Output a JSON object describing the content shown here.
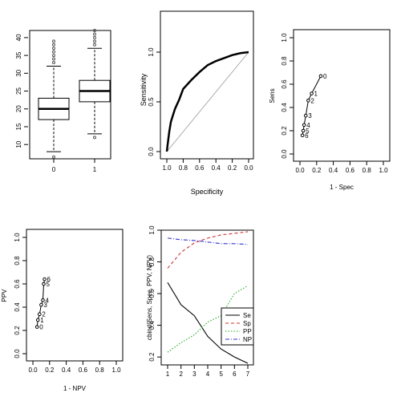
{
  "chart_data": [
    {
      "type": "boxplot",
      "categories": [
        "0",
        "1"
      ],
      "boxes": [
        {
          "name": "0",
          "whisker_low": 8,
          "q1": 17,
          "median": 20,
          "q3": 23,
          "whisker_high": 32,
          "outliers_high": [
            33,
            34,
            35,
            36,
            37,
            38,
            39
          ],
          "outliers_low": [
            6.5
          ]
        },
        {
          "name": "1",
          "whisker_low": 13,
          "q1": 22,
          "median": 25,
          "q3": 28,
          "whisker_high": 37,
          "outliers_high": [
            38,
            39,
            40,
            41,
            42
          ],
          "outliers_low": [
            12
          ]
        }
      ],
      "ylim": [
        6,
        42
      ],
      "yticks": [
        10,
        15,
        20,
        25,
        30,
        35,
        40
      ],
      "xlabel": "",
      "ylabel": ""
    },
    {
      "type": "line",
      "title": "",
      "xlabel": "Specificity",
      "ylabel": "Sensitivity",
      "xlim": [
        1.0,
        0.0
      ],
      "ylim": [
        0.0,
        1.0
      ],
      "xticks": [
        "1.0",
        "0.8",
        "0.6",
        "0.4",
        "0.2",
        "0.0"
      ],
      "yticks": [
        "0.0",
        "0.5",
        "1.0"
      ],
      "series": [
        {
          "x": [
            1.0,
            0.99,
            0.97,
            0.95,
            0.9,
            0.85,
            0.8,
            0.7,
            0.6,
            0.5,
            0.4,
            0.3,
            0.2,
            0.1,
            0.0
          ],
          "y": [
            0.0,
            0.07,
            0.2,
            0.3,
            0.43,
            0.52,
            0.63,
            0.72,
            0.8,
            0.87,
            0.91,
            0.94,
            0.97,
            0.99,
            1.0
          ]
        }
      ],
      "reference_line": [
        [
          1.0,
          0.0
        ],
        [
          0.0,
          1.0
        ]
      ]
    },
    {
      "type": "scatter",
      "xlabel": "1 - Spec",
      "ylabel": "Sens",
      "xlim": [
        0,
        1
      ],
      "ylim": [
        0,
        1
      ],
      "xticks": [
        "0.0",
        "0.2",
        "0.4",
        "0.6",
        "0.8",
        "1.0"
      ],
      "yticks": [
        "0.0",
        "0.2",
        "0.4",
        "0.6",
        "0.8",
        "1.0"
      ],
      "points": [
        {
          "label": "0",
          "x": 0.25,
          "y": 0.67
        },
        {
          "label": "1",
          "x": 0.14,
          "y": 0.52
        },
        {
          "label": "2",
          "x": 0.1,
          "y": 0.46
        },
        {
          "label": "3",
          "x": 0.07,
          "y": 0.33
        },
        {
          "label": "4",
          "x": 0.05,
          "y": 0.25
        },
        {
          "label": "5",
          "x": 0.04,
          "y": 0.2
        },
        {
          "label": "6",
          "x": 0.03,
          "y": 0.16
        }
      ]
    },
    {
      "type": "scatter",
      "xlabel": "1 - NPV",
      "ylabel": "PPV",
      "xlim": [
        0,
        1
      ],
      "ylim": [
        0,
        1
      ],
      "xticks": [
        "0.0",
        "0.2",
        "0.4",
        "0.6",
        "0.8",
        "1.0"
      ],
      "yticks": [
        "0.0",
        "0.2",
        "0.4",
        "0.6",
        "0.8",
        "1.0"
      ],
      "points": [
        {
          "label": "0",
          "x": 0.05,
          "y": 0.23
        },
        {
          "label": "1",
          "x": 0.06,
          "y": 0.29
        },
        {
          "label": "2",
          "x": 0.08,
          "y": 0.34
        },
        {
          "label": "3",
          "x": 0.1,
          "y": 0.42
        },
        {
          "label": "4",
          "x": 0.12,
          "y": 0.46
        },
        {
          "label": "5",
          "x": 0.13,
          "y": 0.6
        },
        {
          "label": "6",
          "x": 0.14,
          "y": 0.64
        }
      ]
    },
    {
      "type": "line",
      "xlabel": "",
      "ylabel": "cbind(Sens, Spec, PPV, NPV)",
      "xlim": [
        1,
        7
      ],
      "ylim": [
        0.15,
        1.0
      ],
      "xticks": [
        "1",
        "2",
        "3",
        "4",
        "5",
        "6",
        "7"
      ],
      "yticks": [
        "0.2",
        "0.4",
        "0.6",
        "0.8",
        "1.0"
      ],
      "x": [
        1,
        2,
        3,
        4,
        5,
        6,
        7
      ],
      "legend": {
        "placement": "bottom-right",
        "entries": [
          "Se",
          "Sp",
          "PP",
          "NP"
        ]
      },
      "series": [
        {
          "name": "Se",
          "color": "#000000",
          "dash": "solid",
          "values": [
            0.67,
            0.53,
            0.46,
            0.33,
            0.25,
            0.2,
            0.16
          ]
        },
        {
          "name": "Sp",
          "color": "#cc3333",
          "dash": "dashed",
          "values": [
            0.76,
            0.86,
            0.92,
            0.95,
            0.97,
            0.98,
            0.99
          ]
        },
        {
          "name": "PP",
          "color": "#22aa22",
          "dash": "dotted",
          "values": [
            0.23,
            0.29,
            0.34,
            0.42,
            0.46,
            0.6,
            0.65
          ]
        },
        {
          "name": "NP",
          "color": "#3333cc",
          "dash": "dashdot",
          "values": [
            0.95,
            0.94,
            0.935,
            0.925,
            0.915,
            0.915,
            0.91
          ]
        }
      ]
    }
  ]
}
